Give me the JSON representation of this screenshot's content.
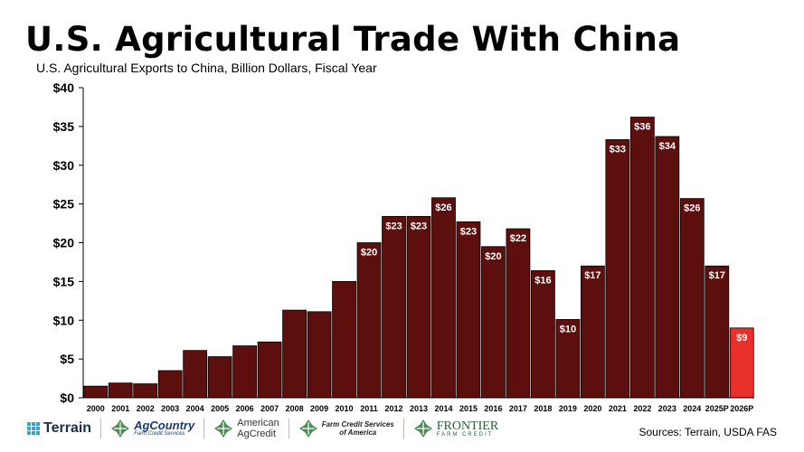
{
  "title": "U.S. Agricultural Trade With China",
  "subtitle": "U.S. Agricultural Exports to China, Billion Dollars, Fiscal Year",
  "sources": "Sources: Terrain, USDA FAS",
  "logos": {
    "terrain": "Terrain",
    "agcountry_name": "AgCountry",
    "agcountry_sub": "Farm Credit Services",
    "american_agcredit_line1": "American",
    "american_agcredit_line2": "AgCredit",
    "fcsa_line1": "Farm Credit Services",
    "fcsa_line2": "of America",
    "frontier_name": "FRONTIER",
    "frontier_sub": "FARM CREDIT"
  },
  "colors": {
    "bar": "#5c0f0c",
    "projection_bar": "#e8302b",
    "terrain_blue": "#3aa3c7",
    "logo_green": "#4e8a57"
  },
  "chart_data": {
    "type": "bar",
    "title": "U.S. Agricultural Trade With China",
    "subtitle": "U.S. Agricultural Exports to China, Billion Dollars, Fiscal Year",
    "categories": [
      "2000",
      "2001",
      "2002",
      "2003",
      "2004",
      "2005",
      "2006",
      "2007",
      "2008",
      "2009",
      "2010",
      "2011",
      "2012",
      "2013",
      "2014",
      "2015",
      "2016",
      "2017",
      "2018",
      "2019",
      "2020",
      "2021",
      "2022",
      "2023",
      "2024",
      "2025P",
      "2026P"
    ],
    "values": [
      1.5,
      1.9,
      1.8,
      3.5,
      6.1,
      5.3,
      6.7,
      7.2,
      11.3,
      11.1,
      15.0,
      20.0,
      23.4,
      23.4,
      25.8,
      22.7,
      19.5,
      21.8,
      16.4,
      10.1,
      17.0,
      33.3,
      36.2,
      33.7,
      25.7,
      17.0,
      9.0
    ],
    "data_labels": [
      "",
      "",
      "",
      "",
      "",
      "",
      "",
      "",
      "",
      "",
      "",
      "$20",
      "$23",
      "$23",
      "$26",
      "$23",
      "$20",
      "$22",
      "$16",
      "$10",
      "$17",
      "$33",
      "$36",
      "$34",
      "$26",
      "$17",
      "$9"
    ],
    "highlight_index": 26,
    "ylim": [
      0,
      40
    ],
    "yticks": [
      "$0",
      "$5",
      "$10",
      "$15",
      "$20",
      "$25",
      "$30",
      "$35",
      "$40"
    ],
    "grid": false,
    "legend": "none"
  }
}
